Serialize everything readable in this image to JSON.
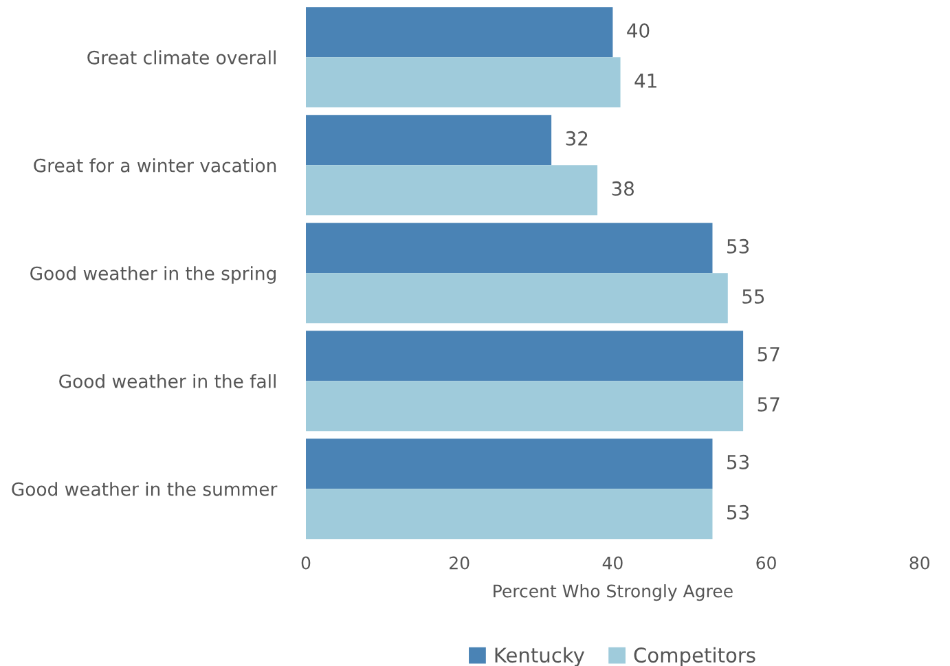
{
  "chart_data": {
    "type": "bar",
    "orientation": "horizontal",
    "xlabel": "Percent Who Strongly Agree",
    "categories": [
      "Great climate overall",
      "Great for a winter vacation",
      "Good weather in the spring",
      "Good weather in the fall",
      "Good weather in the summer"
    ],
    "series": [
      {
        "name": "Kentucky",
        "color": "#4a83b5",
        "values": [
          40,
          32,
          53,
          57,
          53
        ]
      },
      {
        "name": "Competitors",
        "color": "#9fcbdb",
        "values": [
          41,
          38,
          55,
          57,
          53
        ]
      }
    ],
    "xlim": [
      0,
      80
    ],
    "xticks": [
      0,
      20,
      40,
      60,
      80
    ],
    "data_labels": true,
    "grid": false,
    "legend": "bottom"
  }
}
